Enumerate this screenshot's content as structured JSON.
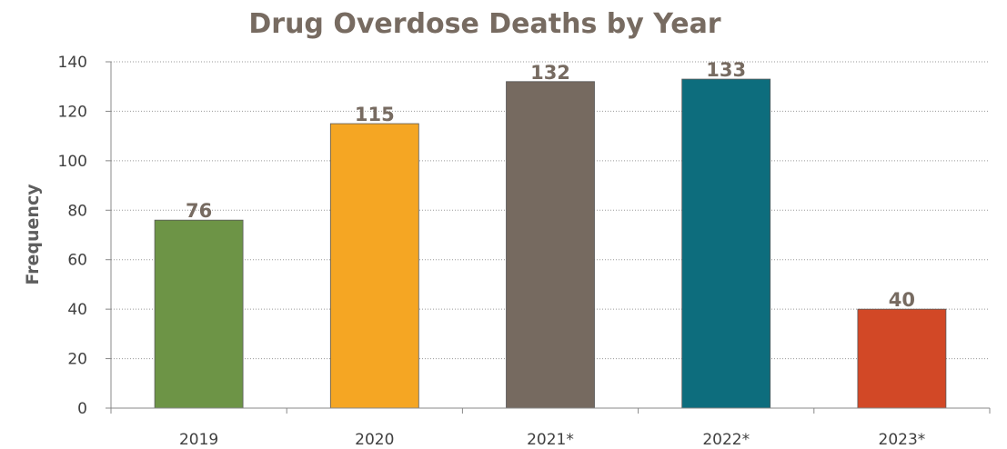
{
  "chart_data": {
    "type": "bar",
    "title": "Drug Overdose Deaths by Year",
    "xlabel": "",
    "ylabel": "Frequency",
    "ylim": [
      0,
      140
    ],
    "yticks": [
      "0",
      "20",
      "40",
      "60",
      "80",
      "100",
      "120",
      "140"
    ],
    "grid": true,
    "categories": [
      "2019",
      "2020",
      "2021*",
      "2022*",
      "2023*"
    ],
    "values": [
      76,
      115,
      132,
      133,
      40
    ],
    "data_labels": [
      "76",
      "115",
      "132",
      "133",
      "40"
    ],
    "colors": [
      "#6d9446",
      "#f5a623",
      "#766a60",
      "#0d6d7d",
      "#d24826"
    ]
  }
}
